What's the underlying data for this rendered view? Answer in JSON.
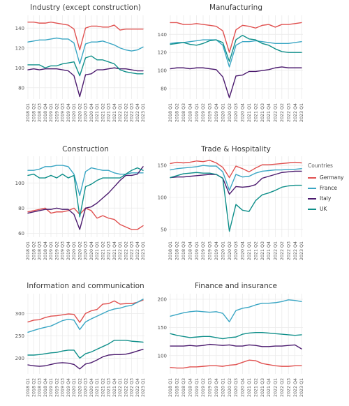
{
  "chart_data": {
    "type": "line",
    "x": [
      "2018 Q1",
      "2018 Q2",
      "2018 Q3",
      "2018 Q4",
      "2019 Q1",
      "2019 Q2",
      "2019 Q3",
      "2019 Q4",
      "2020 Q1",
      "2020 Q2",
      "2020 Q3",
      "2020 Q4",
      "2021 Q1",
      "2021 Q2",
      "2021 Q3",
      "2021 Q4",
      "2022 Q1",
      "2022 Q2",
      "2022 Q3",
      "2022 Q4",
      "2023 Q1"
    ],
    "legend": {
      "title": "Countries",
      "placement": "right",
      "items": [
        {
          "name": "Germany",
          "color": "#e0504f"
        },
        {
          "name": "France",
          "color": "#3aa6c4"
        },
        {
          "name": "Italy",
          "color": "#4b1a6e"
        },
        {
          "name": "UK",
          "color": "#0f8f8a"
        }
      ]
    },
    "panels": [
      {
        "title": "Industry (except construction)",
        "ylim": [
          70,
          150
        ],
        "yticks": [
          80,
          100,
          120,
          140
        ],
        "series": [
          {
            "name": "Germany",
            "values": [
              146,
              146,
              145,
              145,
              146,
              145,
              144,
              143,
              139,
              118,
              140,
              142,
              142,
              141,
              141,
              143,
              138,
              139,
              139,
              139,
              139
            ]
          },
          {
            "name": "France",
            "values": [
              126,
              127,
              128,
              128,
              129,
              130,
              129,
              129,
              125,
              104,
              124,
              126,
              126,
              127,
              125,
              123,
              120,
              118,
              117,
              118,
              121
            ]
          },
          {
            "name": "Italy",
            "values": [
              98,
              99,
              98,
              99,
              99,
              99,
              98,
              97,
              92,
              71,
              93,
              94,
              98,
              98,
              99,
              100,
              99,
              99,
              98,
              97,
              97
            ]
          },
          {
            "name": "UK",
            "values": [
              103,
              103,
              103,
              100,
              102,
              102,
              104,
              105,
              106,
              92,
              110,
              112,
              108,
              108,
              106,
              104,
              98,
              96,
              95,
              94,
              94
            ]
          }
        ]
      },
      {
        "title": "Manufacturing",
        "ylim": [
          70,
          158
        ],
        "yticks": [
          80,
          100,
          120,
          140
        ],
        "series": [
          {
            "name": "Germany",
            "values": [
              153,
              153,
              151,
              151,
              152,
              151,
              150,
              149,
              144,
              120,
              145,
              150,
              149,
              147,
              150,
              151,
              148,
              151,
              151,
              152,
              153
            ]
          },
          {
            "name": "France",
            "values": [
              130,
              131,
              131,
              132,
              133,
              134,
              134,
              134,
              128,
              104,
              128,
              132,
              132,
              133,
              132,
              131,
              130,
              130,
              130,
              131,
              132
            ]
          },
          {
            "name": "Italy",
            "values": [
              102,
              103,
              103,
              102,
              103,
              103,
              102,
              101,
              93,
              70,
              94,
              95,
              99,
              99,
              100,
              101,
              103,
              104,
              103,
              103,
              103
            ]
          },
          {
            "name": "UK",
            "values": [
              129,
              130,
              131,
              129,
              128,
              130,
              133,
              134,
              131,
              110,
              134,
              139,
              135,
              134,
              130,
              128,
              124,
              121,
              120,
              120,
              120
            ]
          }
        ]
      },
      {
        "title": "Construction",
        "ylim": [
          58,
          119
        ],
        "yticks": [
          60,
          80,
          100
        ],
        "series": [
          {
            "name": "Germany",
            "values": [
              77,
              78,
              79,
              80,
              76,
              77,
              77,
              78,
              80,
              75,
              80,
              78,
              72,
              74,
              72,
              71,
              67,
              65,
              63,
              63,
              66
            ]
          },
          {
            "name": "France",
            "values": [
              110,
              110,
              111,
              113,
              113,
              114,
              114,
              113,
              107,
              90,
              109,
              112,
              111,
              110,
              110,
              108,
              107,
              107,
              108,
              108,
              108
            ]
          },
          {
            "name": "Italy",
            "values": [
              76,
              77,
              78,
              79,
              79,
              80,
              79,
              79,
              75,
              63,
              80,
              81,
              84,
              88,
              92,
              97,
              102,
              106,
              106,
              107,
              113
            ]
          },
          {
            "name": "UK",
            "values": [
              106,
              107,
              104,
              104,
              106,
              104,
              107,
              104,
              106,
              73,
              97,
              99,
              102,
              104,
              104,
              104,
              104,
              107,
              110,
              112,
              110
            ]
          }
        ]
      },
      {
        "title": "Trade & Hospitality",
        "ylim": [
          40,
          160
        ],
        "yticks": [
          50,
          100,
          150
        ],
        "series": [
          {
            "name": "Germany",
            "values": [
              153,
              155,
              154,
              155,
              157,
              156,
              158,
              154,
              147,
              131,
              149,
              145,
              140,
              146,
              151,
              151,
              152,
              153,
              154,
              155,
              154
            ]
          },
          {
            "name": "France",
            "values": [
              143,
              145,
              146,
              147,
              148,
              150,
              149,
              149,
              140,
              111,
              136,
              132,
              133,
              138,
              141,
              142,
              143,
              143,
              144,
              144,
              145
            ]
          },
          {
            "name": "Italy",
            "values": [
              131,
              132,
              132,
              133,
              134,
              135,
              136,
              136,
              130,
              105,
              117,
              116,
              117,
              120,
              130,
              133,
              136,
              139,
              140,
              141,
              141
            ]
          },
          {
            "name": "UK",
            "values": [
              131,
              134,
              137,
              138,
              139,
              138,
              138,
              136,
              130,
              47,
              89,
              80,
              78,
              95,
              104,
              107,
              111,
              116,
              118,
              119,
              119
            ]
          }
        ]
      },
      {
        "title": "Information and communication",
        "ylim": [
          168,
          338
        ],
        "yticks": [
          200,
          250,
          300
        ],
        "series": [
          {
            "name": "Germany",
            "values": [
              281,
              285,
              286,
              291,
              294,
              295,
              297,
              299,
              298,
              280,
              300,
              306,
              309,
              321,
              322,
              328,
              321,
              322,
              322,
              325,
              330
            ]
          },
          {
            "name": "France",
            "values": [
              258,
              262,
              266,
              269,
              272,
              278,
              284,
              287,
              285,
              264,
              281,
              288,
              294,
              300,
              306,
              310,
              312,
              316,
              318,
              325,
              332
            ]
          },
          {
            "name": "Italy",
            "values": [
              185,
              183,
              182,
              183,
              186,
              189,
              190,
              189,
              186,
              176,
              187,
              190,
              196,
              203,
              207,
              208,
              208,
              209,
              212,
              216,
              220
            ]
          },
          {
            "name": "UK",
            "values": [
              207,
              207,
              208,
              210,
              212,
              213,
              216,
              218,
              218,
              200,
              210,
              214,
              220,
              226,
              232,
              240,
              240,
              240,
              238,
              237,
              236
            ]
          }
        ]
      },
      {
        "title": "Finance and insurance",
        "ylim": [
          70,
          205
        ],
        "yticks": [
          100,
          150,
          200
        ],
        "series": [
          {
            "name": "Germany",
            "values": [
              79,
              78,
              78,
              80,
              80,
              81,
              82,
              82,
              81,
              83,
              84,
              88,
              92,
              91,
              86,
              84,
              82,
              81,
              81,
              82,
              82
            ]
          },
          {
            "name": "France",
            "values": [
              170,
              173,
              176,
              178,
              179,
              178,
              177,
              178,
              175,
              160,
              180,
              184,
              186,
              190,
              193,
              193,
              194,
              196,
              199,
              198,
              196
            ]
          },
          {
            "name": "Italy",
            "values": [
              117,
              117,
              117,
              118,
              117,
              118,
              120,
              119,
              118,
              119,
              117,
              117,
              119,
              118,
              116,
              116,
              117,
              117,
              118,
              119,
              112
            ]
          },
          {
            "name": "UK",
            "values": [
              139,
              136,
              134,
              132,
              133,
              134,
              134,
              132,
              130,
              132,
              133,
              138,
              140,
              141,
              141,
              140,
              139,
              138,
              137,
              136,
              137
            ]
          }
        ]
      }
    ]
  }
}
